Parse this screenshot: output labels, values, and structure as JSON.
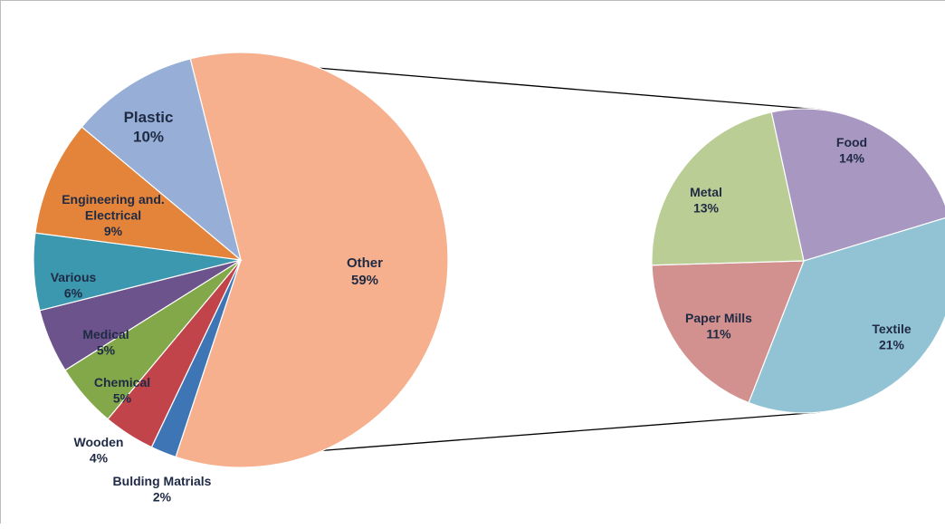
{
  "chart_data": {
    "type": "pie",
    "subtype": "pie-of-pie",
    "main": {
      "slices": [
        {
          "label": "Other",
          "value": 59,
          "pct_label": "59%",
          "color": "#f6b08e"
        },
        {
          "label": "Bulding Matrials",
          "value": 2,
          "pct_label": "2%",
          "color": "#3e76b5"
        },
        {
          "label": "Wooden",
          "value": 4,
          "pct_label": "4%",
          "color": "#c0444a"
        },
        {
          "label": "Chemical",
          "value": 5,
          "pct_label": "5%",
          "color": "#83a84a"
        },
        {
          "label": "Medical",
          "value": 5,
          "pct_label": "5%",
          "color": "#6c538c"
        },
        {
          "label": "Various",
          "value": 6,
          "pct_label": "6%",
          "color": "#3c98ae"
        },
        {
          "label": "Engineering and. Electrical",
          "value": 9,
          "pct_label": "9%",
          "color": "#e3843a"
        },
        {
          "label": "Plastic",
          "value": 10,
          "pct_label": "10%",
          "color": "#97aed6"
        }
      ]
    },
    "breakout": {
      "of": "Other",
      "slices": [
        {
          "label": "Food",
          "value": 14,
          "pct_label": "14%",
          "color": "#a797c1"
        },
        {
          "label": "Textile",
          "value": 21,
          "pct_label": "21%",
          "color": "#92c3d4"
        },
        {
          "label": "Paper Mills",
          "value": 11,
          "pct_label": "11%",
          "color": "#d2918e"
        },
        {
          "label": "Metal",
          "value": 13,
          "pct_label": "13%",
          "color": "#b9cd94"
        }
      ]
    },
    "legend": "none",
    "title": ""
  }
}
